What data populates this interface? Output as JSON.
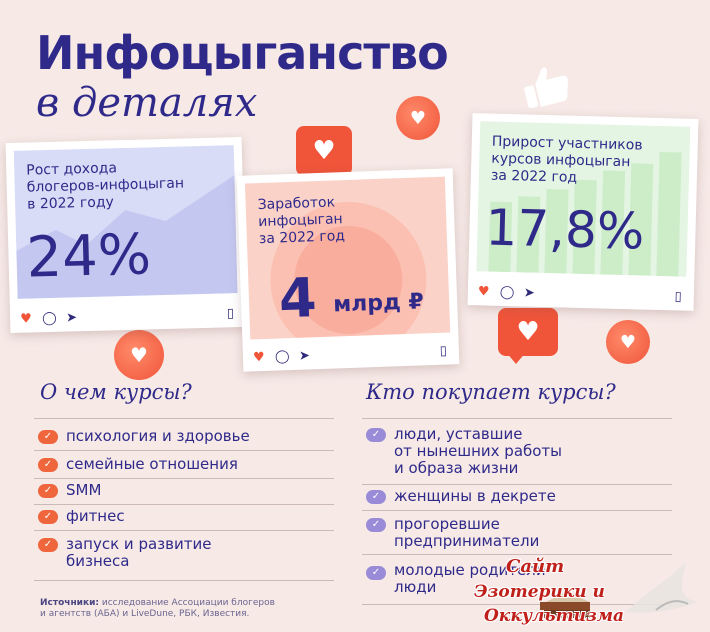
{
  "title": {
    "main": "Инфоцыганство",
    "sub": "в деталях"
  },
  "cards": [
    {
      "label_lines": [
        "Рост дохода",
        "блогеров-инфоцыган",
        "в 2022 году"
      ],
      "value": "24%"
    },
    {
      "label_lines": [
        "Заработок",
        "инфоцыган",
        "за 2022 год"
      ],
      "value_big": "4",
      "value_small": "млрд ₽"
    },
    {
      "label_lines": [
        "Прирост участников",
        "курсов инфоцыган",
        "за 2022 год"
      ],
      "value": "17,8%"
    }
  ],
  "card_icons": {
    "like": "heart-icon",
    "comment": "comment-icon",
    "share": "send-icon",
    "save": "bookmark-icon"
  },
  "courses": {
    "heading": "О чем курсы?",
    "items": [
      [
        "психология и здоровье"
      ],
      [
        "семейные отношения"
      ],
      [
        "SMM"
      ],
      [
        "фитнес"
      ],
      [
        "запуск и развитие",
        "бизнеса"
      ]
    ]
  },
  "buyers": {
    "heading": "Кто покупает курсы?",
    "items": [
      [
        "люди, уставшие",
        "от нынешних работы",
        "и образа жизни"
      ],
      [
        "женщины в декрете"
      ],
      [
        "прогоревшие",
        "предприниматели"
      ],
      [
        "молодые родители",
        "люди"
      ]
    ]
  },
  "sources": {
    "label": "Источники:",
    "line1": " исследование Ассоциации блогеров",
    "line2": "и агентств (АБА) и LiveDune, РБК, Известия."
  },
  "watermark": {
    "line1": "Сайт",
    "line2": "Эзотерики и",
    "line3": "Оккультизма"
  },
  "colors": {
    "accent_orange": "#f0553a",
    "navy": "#2f2a8a",
    "lavender_check": "#9a8bd8",
    "background": "#f6e9e6"
  }
}
